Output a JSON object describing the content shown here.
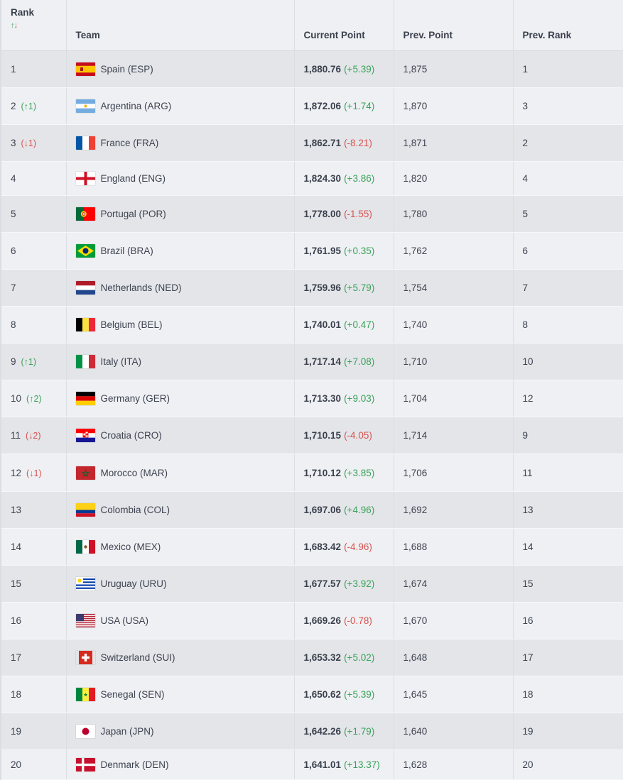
{
  "headers": {
    "rank": "Rank",
    "team": "Team",
    "current_point": "Current Point",
    "prev_point": "Prev. Point",
    "prev_rank": "Prev. Rank",
    "sort_up": "↑",
    "sort_down": "↓"
  },
  "rows": [
    {
      "rank": "1",
      "move": "",
      "move_dir": "",
      "team": "Spain (ESP)",
      "flag": "flag-spain",
      "points": "1,880.76",
      "change": "(+5.39)",
      "change_dir": "pos",
      "prev_point": "1,875",
      "prev_rank": "1"
    },
    {
      "rank": "2",
      "move": "(↑1)",
      "move_dir": "up",
      "team": "Argentina (ARG)",
      "flag": "flag-argentina",
      "points": "1,872.06",
      "change": "(+1.74)",
      "change_dir": "pos",
      "prev_point": "1,870",
      "prev_rank": "3"
    },
    {
      "rank": "3",
      "move": "(↓1)",
      "move_dir": "down",
      "team": "France (FRA)",
      "flag": "flag-france",
      "points": "1,862.71",
      "change": "(-8.21)",
      "change_dir": "neg",
      "prev_point": "1,871",
      "prev_rank": "2"
    },
    {
      "rank": "4",
      "move": "",
      "move_dir": "",
      "team": "England (ENG)",
      "flag": "flag-england",
      "points": "1,824.30",
      "change": "(+3.86)",
      "change_dir": "pos",
      "prev_point": "1,820",
      "prev_rank": "4"
    },
    {
      "rank": "5",
      "move": "",
      "move_dir": "",
      "team": "Portugal (POR)",
      "flag": "flag-portugal",
      "points": "1,778.00",
      "change": "(-1.55)",
      "change_dir": "neg",
      "prev_point": "1,780",
      "prev_rank": "5"
    },
    {
      "rank": "6",
      "move": "",
      "move_dir": "",
      "team": "Brazil (BRA)",
      "flag": "flag-brazil",
      "points": "1,761.95",
      "change": "(+0.35)",
      "change_dir": "pos",
      "prev_point": "1,762",
      "prev_rank": "6"
    },
    {
      "rank": "7",
      "move": "",
      "move_dir": "",
      "team": "Netherlands (NED)",
      "flag": "flag-netherlands",
      "points": "1,759.96",
      "change": "(+5.79)",
      "change_dir": "pos",
      "prev_point": "1,754",
      "prev_rank": "7"
    },
    {
      "rank": "8",
      "move": "",
      "move_dir": "",
      "team": "Belgium (BEL)",
      "flag": "flag-belgium",
      "points": "1,740.01",
      "change": "(+0.47)",
      "change_dir": "pos",
      "prev_point": "1,740",
      "prev_rank": "8"
    },
    {
      "rank": "9",
      "move": "(↑1)",
      "move_dir": "up",
      "team": "Italy (ITA)",
      "flag": "flag-italy",
      "points": "1,717.14",
      "change": "(+7.08)",
      "change_dir": "pos",
      "prev_point": "1,710",
      "prev_rank": "10"
    },
    {
      "rank": "10",
      "move": "(↑2)",
      "move_dir": "up",
      "team": "Germany (GER)",
      "flag": "flag-germany",
      "points": "1,713.30",
      "change": "(+9.03)",
      "change_dir": "pos",
      "prev_point": "1,704",
      "prev_rank": "12"
    },
    {
      "rank": "11",
      "move": "(↓2)",
      "move_dir": "down",
      "team": "Croatia (CRO)",
      "flag": "flag-croatia",
      "points": "1,710.15",
      "change": "(-4.05)",
      "change_dir": "neg",
      "prev_point": "1,714",
      "prev_rank": "9"
    },
    {
      "rank": "12",
      "move": "(↓1)",
      "move_dir": "down",
      "team": "Morocco (MAR)",
      "flag": "flag-morocco",
      "points": "1,710.12",
      "change": "(+3.85)",
      "change_dir": "pos",
      "prev_point": "1,706",
      "prev_rank": "11"
    },
    {
      "rank": "13",
      "move": "",
      "move_dir": "",
      "team": "Colombia (COL)",
      "flag": "flag-colombia",
      "points": "1,697.06",
      "change": "(+4.96)",
      "change_dir": "pos",
      "prev_point": "1,692",
      "prev_rank": "13"
    },
    {
      "rank": "14",
      "move": "",
      "move_dir": "",
      "team": "Mexico (MEX)",
      "flag": "flag-mexico",
      "points": "1,683.42",
      "change": "(-4.96)",
      "change_dir": "neg",
      "prev_point": "1,688",
      "prev_rank": "14"
    },
    {
      "rank": "15",
      "move": "",
      "move_dir": "",
      "team": "Uruguay (URU)",
      "flag": "flag-uruguay",
      "points": "1,677.57",
      "change": "(+3.92)",
      "change_dir": "pos",
      "prev_point": "1,674",
      "prev_rank": "15"
    },
    {
      "rank": "16",
      "move": "",
      "move_dir": "",
      "team": "USA (USA)",
      "flag": "flag-usa",
      "points": "1,669.26",
      "change": "(-0.78)",
      "change_dir": "neg",
      "prev_point": "1,670",
      "prev_rank": "16"
    },
    {
      "rank": "17",
      "move": "",
      "move_dir": "",
      "team": "Switzerland (SUI)",
      "flag": "flag-switzerland",
      "points": "1,653.32",
      "change": "(+5.02)",
      "change_dir": "pos",
      "prev_point": "1,648",
      "prev_rank": "17"
    },
    {
      "rank": "18",
      "move": "",
      "move_dir": "",
      "team": "Senegal (SEN)",
      "flag": "flag-senegal",
      "points": "1,650.62",
      "change": "(+5.39)",
      "change_dir": "pos",
      "prev_point": "1,645",
      "prev_rank": "18"
    },
    {
      "rank": "19",
      "move": "",
      "move_dir": "",
      "team": "Japan (JPN)",
      "flag": "flag-japan",
      "points": "1,642.26",
      "change": "(+1.79)",
      "change_dir": "pos",
      "prev_point": "1,640",
      "prev_rank": "19"
    },
    {
      "rank": "20",
      "move": "",
      "move_dir": "",
      "team": "Denmark (DEN)",
      "flag": "flag-denmark",
      "points": "1,641.01",
      "change": "(+13.37)",
      "change_dir": "pos",
      "prev_point": "1,628",
      "prev_rank": "20"
    }
  ],
  "colors": {
    "up": "#3ca35a",
    "down": "#d9534f",
    "row_odd": "#e3e5e9",
    "row_even": "#eef0f3"
  }
}
